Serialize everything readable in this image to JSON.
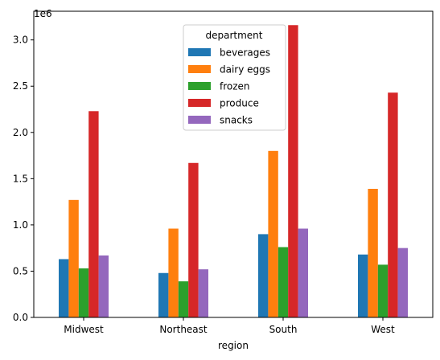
{
  "chart_data": {
    "type": "bar",
    "xlabel": "region",
    "ylabel": "",
    "y_offset_label": "1e6",
    "categories": [
      "Midwest",
      "Northeast",
      "South",
      "West"
    ],
    "y_ticks": [
      0.0,
      0.5,
      1.0,
      1.5,
      2.0,
      2.5,
      3.0
    ],
    "y_tick_labels": [
      "0.0",
      "0.5",
      "1.0",
      "1.5",
      "2.0",
      "2.5",
      "3.0"
    ],
    "ylim": [
      0,
      3.31
    ],
    "y_unit_multiplier": 1000000,
    "grid": false,
    "legend": {
      "title": "department",
      "placement": "upper center"
    },
    "series": [
      {
        "name": "beverages",
        "color": "#1f77b4",
        "values": [
          0.63,
          0.48,
          0.9,
          0.68
        ]
      },
      {
        "name": "dairy eggs",
        "color": "#ff7f0e",
        "values": [
          1.27,
          0.96,
          1.8,
          1.39
        ]
      },
      {
        "name": "frozen",
        "color": "#2ca02c",
        "values": [
          0.53,
          0.39,
          0.76,
          0.57
        ]
      },
      {
        "name": "produce",
        "color": "#d62728",
        "values": [
          2.23,
          1.67,
          3.16,
          2.43
        ]
      },
      {
        "name": "snacks",
        "color": "#9467bd",
        "values": [
          0.67,
          0.52,
          0.96,
          0.75
        ]
      }
    ]
  }
}
